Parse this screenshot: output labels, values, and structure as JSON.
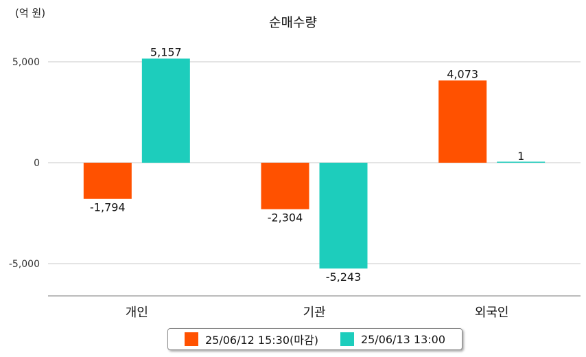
{
  "chart_data": {
    "type": "bar",
    "title": "순매수량",
    "unit_label": "(억 원)",
    "categories": [
      "개인",
      "기관",
      "외국인"
    ],
    "series": [
      {
        "name": "25/06/12 15:30(마감)",
        "color": "#ff5100",
        "values": [
          -1794,
          -2304,
          4073
        ]
      },
      {
        "name": "25/06/13 13:00",
        "color": "#1dcdbc",
        "values": [
          5157,
          -5243,
          1
        ]
      }
    ],
    "value_labels": [
      [
        "-1,794",
        "-2,304",
        "4,073"
      ],
      [
        "5,157",
        "-5,243",
        "1"
      ]
    ],
    "y_ticks": [
      5000,
      0,
      -5000
    ],
    "y_tick_labels": [
      "5,000",
      "0",
      "-5,000"
    ],
    "ylim": [
      -6500,
      5000
    ],
    "grid": true,
    "legend_position": "bottom"
  }
}
